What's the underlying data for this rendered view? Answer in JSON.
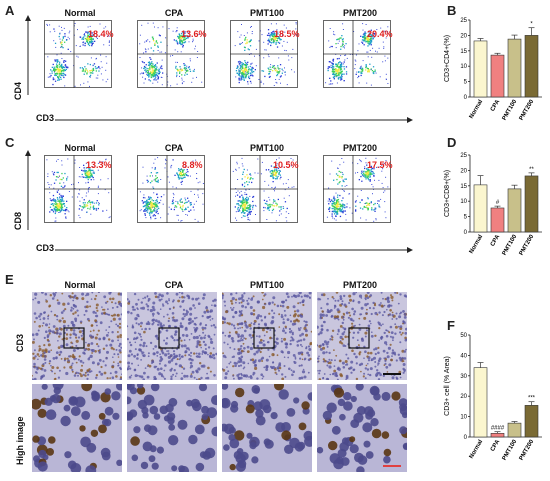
{
  "panel_letters": {
    "A": "A",
    "B": "B",
    "C": "C",
    "D": "D",
    "E": "E",
    "F": "F"
  },
  "groups": [
    "Normal",
    "CPA",
    "PMT100",
    "PMT200"
  ],
  "row_a": {
    "y_label": "CD4",
    "x_label": "CD3",
    "pcts": [
      "18.4%",
      "13.6%",
      "18.5%",
      "20.4%"
    ]
  },
  "row_c": {
    "y_label": "CD8",
    "x_label": "CD3",
    "pcts": [
      "13.3%",
      "8.8%",
      "10.5%",
      "17.5%"
    ]
  },
  "row_e": {
    "row1_label": "CD3",
    "row2_label": "High image"
  },
  "colors": {
    "normal": "#fbf6cf",
    "cpa": "#f08080",
    "pmt100": "#c8c08a",
    "pmt200": "#7a6a34",
    "pct_red": "#e02020"
  },
  "chart_data": [
    {
      "id": "B",
      "type": "bar",
      "categories": [
        "Normal",
        "CPA",
        "PMT100",
        "PMT200"
      ],
      "values": [
        18.2,
        13.6,
        18.8,
        20.0
      ],
      "errors": [
        0.8,
        0.6,
        1.3,
        2.5
      ],
      "sig": [
        "",
        "",
        "",
        "*"
      ],
      "ylabel": "CD3+CD4+(%)",
      "ylim": [
        0,
        25
      ],
      "yticks": [
        0,
        5,
        10,
        15,
        20,
        25
      ]
    },
    {
      "id": "D",
      "type": "bar",
      "categories": [
        "Normal",
        "CPA",
        "PMT100",
        "PMT200"
      ],
      "values": [
        15.3,
        7.8,
        14.0,
        18.2
      ],
      "errors": [
        3.0,
        0.6,
        1.2,
        1.0
      ],
      "sig": [
        "",
        "#",
        "",
        "**"
      ],
      "ylabel": "CD3+CD8+(%)",
      "ylim": [
        0,
        25
      ],
      "yticks": [
        0,
        5,
        10,
        15,
        20,
        25
      ]
    },
    {
      "id": "F",
      "type": "bar",
      "categories": [
        "Normal",
        "CPA",
        "PMT100",
        "PMT200"
      ],
      "values": [
        34.0,
        1.8,
        6.8,
        15.5
      ],
      "errors": [
        2.5,
        0.8,
        0.8,
        1.8
      ],
      "sig": [
        "",
        "####",
        "",
        "***"
      ],
      "ylabel": "CD3+ cell (% Area)",
      "ylim": [
        0,
        50
      ],
      "yticks": [
        0,
        10,
        20,
        30,
        40,
        50
      ]
    }
  ]
}
